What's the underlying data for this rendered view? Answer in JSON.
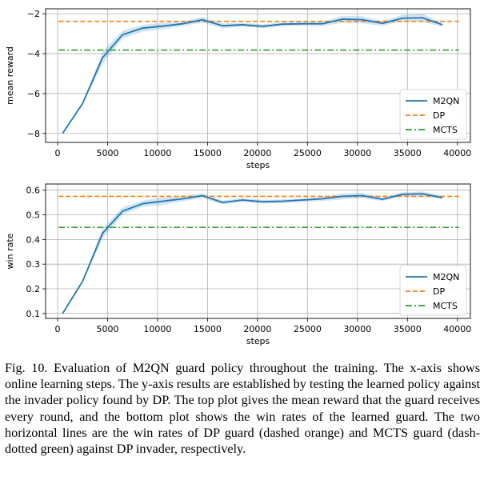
{
  "caption": "Fig. 10.   Evaluation of M2QN guard policy throughout the training. The x-axis shows online learning steps. The y-axis results are established by testing the learned policy against the invader policy found by DP. The top plot gives the mean reward that the guard receives every round, and the bottom plot shows the win rates of the learned guard. The two horizontal lines are the win rates of DP guard (dashed orange) and MCTS guard (dash-dotted green) against DP invader, respectively.",
  "colors": {
    "m2qn": "#1f77b4",
    "dp": "#ff7f0e",
    "mcts": "#2ca02c",
    "band": "#1f77b4"
  },
  "chart_data": [
    {
      "type": "line",
      "xlabel": "steps",
      "ylabel": "mean reward",
      "xlim": [
        -1200,
        41300
      ],
      "ylim": [
        -8.45,
        -1.75
      ],
      "xticks": [
        0,
        5000,
        10000,
        15000,
        20000,
        25000,
        30000,
        35000,
        40000
      ],
      "xtick_labels": [
        "0",
        "5000",
        "10000",
        "15000",
        "20000",
        "25000",
        "30000",
        "35000",
        "40000"
      ],
      "yticks": [
        -8,
        -6,
        -4,
        -2
      ],
      "ytick_labels": [
        "−8",
        "−6",
        "−4",
        "−2"
      ],
      "grid": true,
      "legend_position": "lower-right",
      "series": [
        {
          "name": "M2QN",
          "x": [
            500,
            2500,
            4500,
            6500,
            8500,
            10500,
            12500,
            14500,
            16500,
            18500,
            20500,
            22500,
            24500,
            26500,
            28500,
            30500,
            32500,
            34500,
            36500,
            38500
          ],
          "y": [
            -8.0,
            -6.5,
            -4.2,
            -3.05,
            -2.72,
            -2.62,
            -2.5,
            -2.3,
            -2.6,
            -2.55,
            -2.63,
            -2.52,
            -2.5,
            -2.5,
            -2.27,
            -2.3,
            -2.48,
            -2.22,
            -2.2,
            -2.55
          ],
          "lower": [
            -8.0,
            -6.55,
            -4.5,
            -3.25,
            -2.9,
            -2.78,
            -2.62,
            -2.45,
            -2.72,
            -2.65,
            -2.73,
            -2.62,
            -2.6,
            -2.62,
            -2.45,
            -2.48,
            -2.6,
            -2.38,
            -2.4,
            -2.65
          ],
          "upper": [
            -8.0,
            -6.45,
            -3.9,
            -2.85,
            -2.55,
            -2.45,
            -2.38,
            -2.15,
            -2.48,
            -2.45,
            -2.53,
            -2.42,
            -2.4,
            -2.38,
            -2.1,
            -2.12,
            -2.36,
            -2.05,
            -2.0,
            -2.45
          ]
        },
        {
          "name": "DP",
          "y": -2.38
        },
        {
          "name": "MCTS",
          "y": -3.82
        }
      ]
    },
    {
      "type": "line",
      "xlabel": "steps",
      "ylabel": "win rate",
      "xlim": [
        -1200,
        41300
      ],
      "ylim": [
        0.08,
        0.625
      ],
      "xticks": [
        0,
        5000,
        10000,
        15000,
        20000,
        25000,
        30000,
        35000,
        40000
      ],
      "xtick_labels": [
        "0",
        "5000",
        "10000",
        "15000",
        "20000",
        "25000",
        "30000",
        "35000",
        "40000"
      ],
      "yticks": [
        0.1,
        0.2,
        0.3,
        0.4,
        0.5,
        0.6
      ],
      "ytick_labels": [
        "0.1",
        "0.2",
        "0.3",
        "0.4",
        "0.5",
        "0.6"
      ],
      "grid": true,
      "legend_position": "lower-right",
      "series": [
        {
          "name": "M2QN",
          "x": [
            500,
            2500,
            4500,
            6500,
            8500,
            10500,
            12500,
            14500,
            16500,
            18500,
            20500,
            22500,
            24500,
            26500,
            28500,
            30500,
            32500,
            34500,
            36500,
            38500
          ],
          "y": [
            0.1,
            0.23,
            0.425,
            0.515,
            0.545,
            0.555,
            0.565,
            0.578,
            0.55,
            0.56,
            0.553,
            0.555,
            0.56,
            0.565,
            0.575,
            0.578,
            0.563,
            0.583,
            0.585,
            0.57
          ],
          "lower": [
            0.1,
            0.225,
            0.405,
            0.5,
            0.532,
            0.54,
            0.555,
            0.568,
            0.542,
            0.552,
            0.545,
            0.548,
            0.553,
            0.556,
            0.563,
            0.566,
            0.556,
            0.574,
            0.575,
            0.562
          ],
          "upper": [
            0.1,
            0.235,
            0.445,
            0.53,
            0.558,
            0.57,
            0.575,
            0.588,
            0.558,
            0.568,
            0.561,
            0.562,
            0.567,
            0.574,
            0.587,
            0.59,
            0.57,
            0.592,
            0.595,
            0.578
          ]
        },
        {
          "name": "DP",
          "y": 0.575
        },
        {
          "name": "MCTS",
          "y": 0.449
        }
      ]
    }
  ]
}
